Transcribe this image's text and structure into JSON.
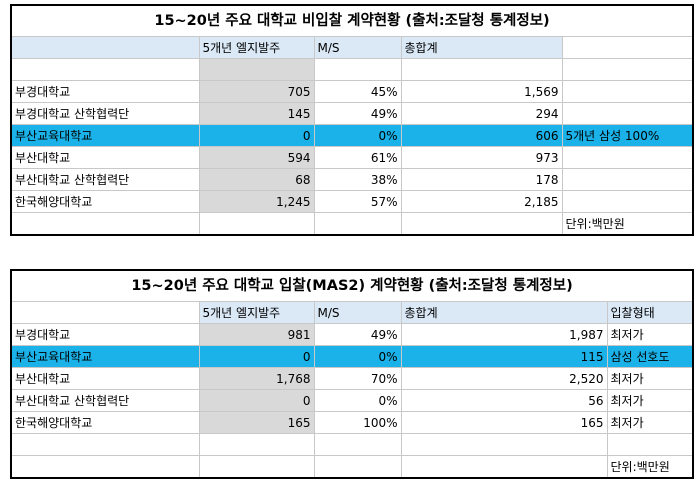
{
  "table1": {
    "title": "15~20년 주요 대학교 비입찰 계약현황 (출처:조달청 통계정보)",
    "headers": [
      "",
      "5개년 엘지발주",
      "M/S",
      "총합계",
      ""
    ],
    "rows": [
      {
        "name": "부경대학교",
        "order": "705",
        "ms": "45%",
        "total": "1,569",
        "note": ""
      },
      {
        "name": "부경대학교 산학협력단",
        "order": "145",
        "ms": "49%",
        "total": "294",
        "note": ""
      },
      {
        "name": "부산교육대학교",
        "order": "0",
        "ms": "0%",
        "total": "606",
        "note": "5개년 삼성 100%"
      },
      {
        "name": "부산대학교",
        "order": "594",
        "ms": "61%",
        "total": "973",
        "note": ""
      },
      {
        "name": "부산대학교 산학협력단",
        "order": "68",
        "ms": "38%",
        "total": "178",
        "note": ""
      },
      {
        "name": "한국해양대학교",
        "order": "1,245",
        "ms": "57%",
        "total": "2,185",
        "note": ""
      }
    ],
    "unit": "단위:백만원"
  },
  "table2": {
    "title": "15~20년 주요 대학교 입찰(MAS2) 계약현황 (출처:조달청 통계정보)",
    "headers": [
      "",
      "5개년 엘지발주",
      "M/S",
      "총합계",
      "입찰형태"
    ],
    "rows": [
      {
        "name": "부경대학교",
        "order": "981",
        "ms": "49%",
        "total": "1,987",
        "note": "최저가"
      },
      {
        "name": "부산교육대학교",
        "order": "0",
        "ms": "0%",
        "total": "115",
        "note": "삼성 선호도"
      },
      {
        "name": "부산대학교",
        "order": "1,768",
        "ms": "70%",
        "total": "2,520",
        "note": "최저가"
      },
      {
        "name": "부산대학교 산학협력단",
        "order": "0",
        "ms": "0%",
        "total": "56",
        "note": "최저가"
      },
      {
        "name": "한국해양대학교",
        "order": "165",
        "ms": "100%",
        "total": "165",
        "note": "최저가"
      }
    ],
    "unit": "단위:백만원"
  },
  "colors": {
    "highlight": "#1ab2e8",
    "header": "#dbe9f7",
    "gray": "#d9d9d9"
  }
}
